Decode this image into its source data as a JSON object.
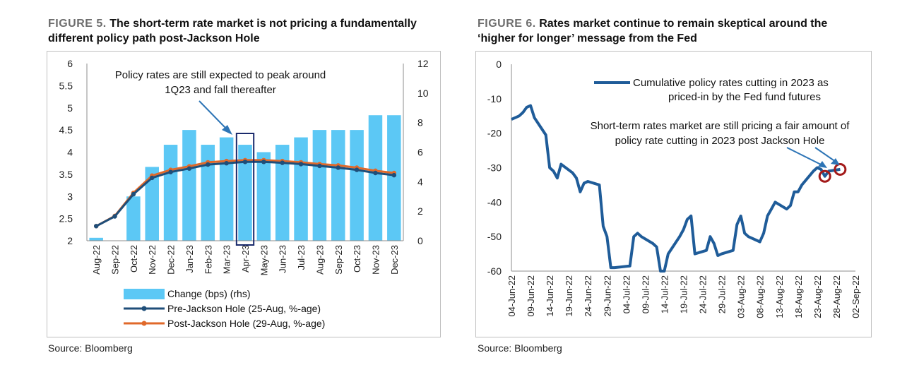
{
  "figure5": {
    "fig_label": "FIGURE 5.",
    "title_line1": "The short-term rate market is not pricing a fundamentally",
    "title_line2": "different policy path post-Jackson Hole",
    "source": "Source: Bloomberg",
    "colors": {
      "bars": "#5cc8f5",
      "pre": "#1f4e79",
      "post": "#e0692a",
      "highlight_box": "#1a2a6c",
      "arrow": "#2e75b6"
    }
  },
  "figure6": {
    "fig_label": "FIGURE 6.",
    "title_line1": "Rates market continue to remain skeptical around the",
    "title_line2": "‘higher for longer’ message from the Fed",
    "source": "Source: Bloomberg",
    "colors": {
      "line": "#1f5c99",
      "circle": "#a31a1a",
      "arrow": "#2e75b6"
    }
  },
  "chart_data": [
    {
      "type": "bar",
      "categories": [
        "Aug-22",
        "Sep-22",
        "Oct-22",
        "Nov-22",
        "Dec-22",
        "Jan-23",
        "Feb-23",
        "Mar-23",
        "Apr-23",
        "May-23",
        "Jun-23",
        "Jul-23",
        "Aug-23",
        "Sep-23",
        "Oct-23",
        "Nov-23",
        "Dec-23"
      ],
      "y_left_ticks": [
        "6",
        "5.5",
        "5",
        "4.5",
        "4",
        "3.5",
        "3",
        "2.5",
        "2"
      ],
      "y_right_ticks": [
        "12",
        "10",
        "8",
        "6",
        "4",
        "2",
        "0"
      ],
      "ylim_left": [
        2,
        6
      ],
      "ylim_right": [
        0,
        12
      ],
      "series": [
        {
          "name": "Change (bps) (rhs)",
          "type": "bar",
          "axis": "right",
          "values": [
            0.2,
            0,
            3.0,
            5.0,
            6.5,
            7.5,
            6.5,
            7.0,
            6.5,
            6.0,
            6.5,
            7.0,
            7.5,
            7.5,
            7.5,
            8.5,
            8.5
          ]
        },
        {
          "name": "Pre-Jackson Hole (25-Aug, %-age)",
          "type": "line",
          "axis": "left",
          "values": [
            2.33,
            2.55,
            3.05,
            3.42,
            3.55,
            3.63,
            3.72,
            3.75,
            3.78,
            3.78,
            3.76,
            3.73,
            3.69,
            3.65,
            3.6,
            3.53,
            3.48
          ]
        },
        {
          "name": "Post-Jackson Hole (29-Aug, %-age)",
          "type": "line",
          "axis": "left",
          "values": [
            2.33,
            2.56,
            3.08,
            3.47,
            3.6,
            3.68,
            3.77,
            3.8,
            3.82,
            3.82,
            3.8,
            3.77,
            3.73,
            3.7,
            3.65,
            3.58,
            3.53
          ]
        }
      ],
      "annotation": [
        "Policy rates are still expected to peak around",
        "1Q23 and fall thereafter"
      ],
      "highlight_category": "Apr-23",
      "grid": false,
      "legend": "bottom"
    },
    {
      "type": "line",
      "x_ticks": [
        "04-Jun-22",
        "09-Jun-22",
        "14-Jun-22",
        "19-Jun-22",
        "24-Jun-22",
        "29-Jun-22",
        "04-Jul-22",
        "09-Jul-22",
        "14-Jul-22",
        "19-Jul-22",
        "24-Jul-22",
        "29-Jul-22",
        "03-Aug-22",
        "08-Aug-22",
        "13-Aug-22",
        "18-Aug-22",
        "23-Aug-22",
        "28-Aug-22",
        "02-Sep-22"
      ],
      "y_ticks": [
        "0",
        "-10",
        "-20",
        "-30",
        "-40",
        "-50",
        "-60"
      ],
      "xlim": [
        "2022-06-04",
        "2022-09-02"
      ],
      "ylim": [
        -60,
        0
      ],
      "series": [
        {
          "name": "Cumulative policy rates cutting in 2023 as priced-in by the Fed fund futures",
          "x": [
            "2022-06-04",
            "2022-06-06",
            "2022-06-07",
            "2022-06-08",
            "2022-06-09",
            "2022-06-10",
            "2022-06-13",
            "2022-06-14",
            "2022-06-15",
            "2022-06-16",
            "2022-06-17",
            "2022-06-20",
            "2022-06-21",
            "2022-06-22",
            "2022-06-23",
            "2022-06-24",
            "2022-06-27",
            "2022-06-28",
            "2022-06-29",
            "2022-06-30",
            "2022-07-01",
            "2022-07-05",
            "2022-07-06",
            "2022-07-07",
            "2022-07-08",
            "2022-07-11",
            "2022-07-12",
            "2022-07-13",
            "2022-07-14",
            "2022-07-15",
            "2022-07-18",
            "2022-07-19",
            "2022-07-20",
            "2022-07-21",
            "2022-07-22",
            "2022-07-25",
            "2022-07-26",
            "2022-07-27",
            "2022-07-28",
            "2022-07-29",
            "2022-08-01",
            "2022-08-02",
            "2022-08-03",
            "2022-08-04",
            "2022-08-05",
            "2022-08-08",
            "2022-08-09",
            "2022-08-10",
            "2022-08-11",
            "2022-08-12",
            "2022-08-15",
            "2022-08-16",
            "2022-08-17",
            "2022-08-18",
            "2022-08-19",
            "2022-08-22",
            "2022-08-23",
            "2022-08-24",
            "2022-08-25",
            "2022-08-26",
            "2022-08-29"
          ],
          "y": [
            -16,
            -15,
            -14,
            -12.5,
            -12,
            -15.5,
            -20.5,
            -30,
            -31,
            -33,
            -29,
            -31.5,
            -33,
            -37,
            -34.5,
            -34,
            -35,
            -47,
            -50,
            -59,
            -59,
            -58.5,
            -50,
            -49,
            -50,
            -52,
            -53,
            -60,
            -60,
            -55,
            -50,
            -48,
            -45,
            -44,
            -55,
            -54,
            -50,
            -52,
            -55.5,
            -55,
            -54,
            -46.5,
            -44,
            -49,
            -50,
            -51.5,
            -49,
            -44,
            -42,
            -40,
            -42,
            -41,
            -37,
            -37,
            -35,
            -31,
            -30,
            -30.5,
            -32.5,
            -31,
            -30.5
          ]
        }
      ],
      "annotations": [
        "Short-term rates market are still pricing a fair amount of",
        "policy rate cutting in 2023 post Jackson Hole"
      ],
      "grid": false,
      "legend": "top-right"
    }
  ]
}
